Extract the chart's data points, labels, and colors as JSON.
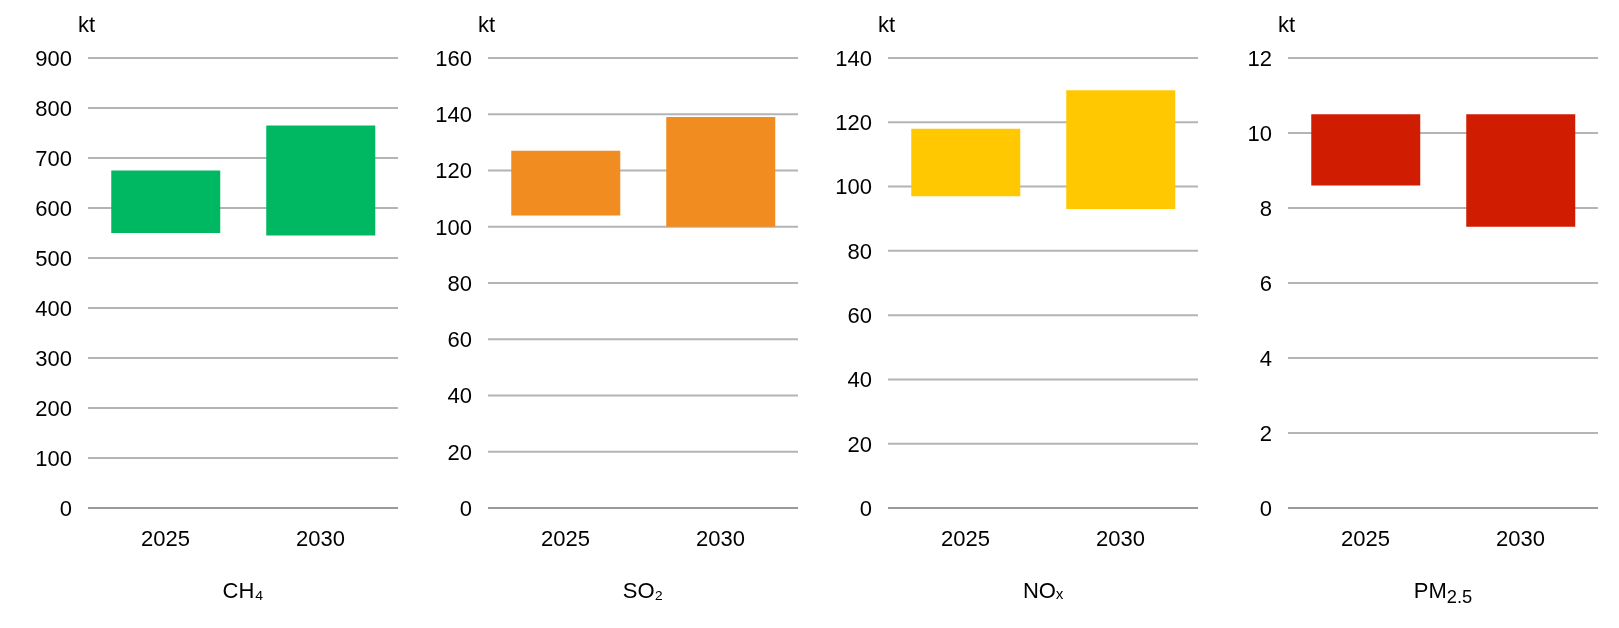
{
  "chart_data": [
    {
      "type": "bar",
      "ylabel": "kt",
      "xlabel": "CH₄",
      "categories": [
        "2025",
        "2030"
      ],
      "values": [
        125,
        220
      ],
      "base": [
        550,
        545
      ],
      "color": "#00b862",
      "ylim": [
        0,
        900
      ],
      "yticks": [
        0,
        100,
        200,
        300,
        400,
        500,
        600,
        700,
        800,
        900
      ],
      "grid": "y"
    },
    {
      "type": "bar",
      "ylabel": "kt",
      "xlabel": "SO₂",
      "categories": [
        "2025",
        "2030"
      ],
      "values": [
        23,
        39
      ],
      "base": [
        104,
        100
      ],
      "color": "#f08c20",
      "ylim": [
        0,
        160
      ],
      "yticks": [
        0,
        20,
        40,
        60,
        80,
        100,
        120,
        140,
        160
      ],
      "grid": "y"
    },
    {
      "type": "bar",
      "ylabel": "kt",
      "xlabel": "NOₓ",
      "categories": [
        "2025",
        "2030"
      ],
      "values": [
        21,
        37
      ],
      "base": [
        97,
        93
      ],
      "color": "#ffc800",
      "ylim": [
        0,
        140
      ],
      "yticks": [
        0,
        20,
        40,
        60,
        80,
        100,
        120,
        140
      ],
      "grid": "y"
    },
    {
      "type": "bar",
      "ylabel": "kt",
      "xlabel": "PM$_{2.5}$",
      "categories": [
        "2025",
        "2030"
      ],
      "values": [
        1.9,
        3.0
      ],
      "base": [
        8.6,
        7.5
      ],
      "color": "#d01c00",
      "ylim": [
        0,
        12
      ],
      "yticks": [
        0,
        2,
        4,
        6,
        8,
        10,
        12
      ],
      "grid": "y"
    }
  ]
}
